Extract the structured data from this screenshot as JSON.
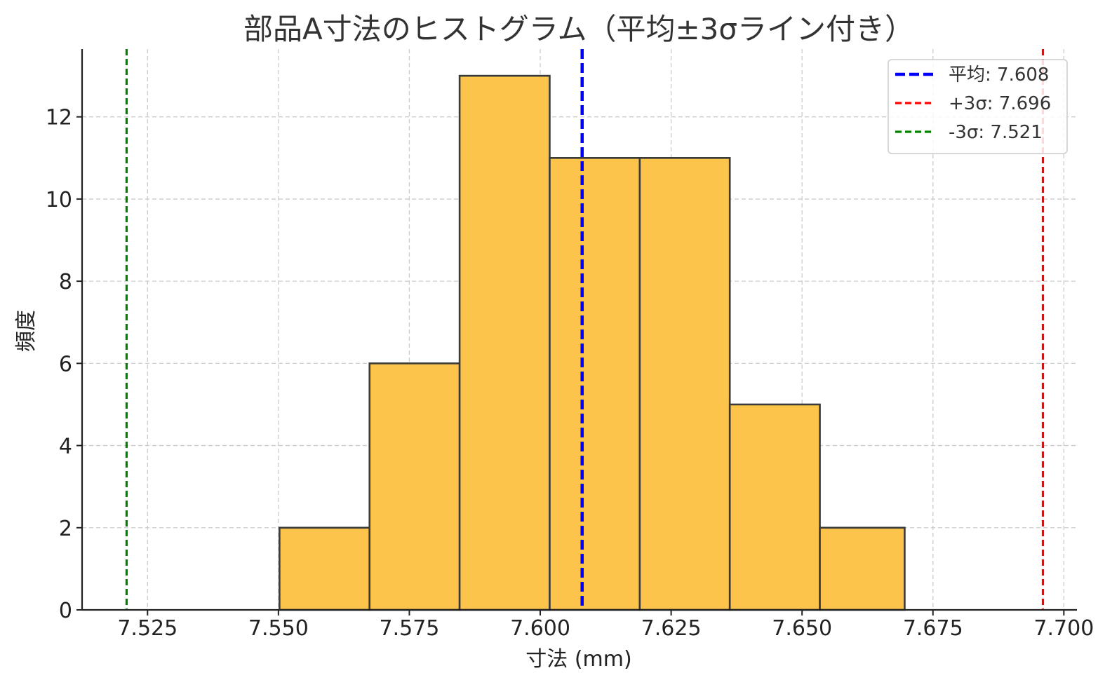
{
  "chart_data": {
    "type": "bar",
    "subtype": "histogram",
    "title": "部品A寸法のヒストグラム（平均±3σライン付き）",
    "xlabel": "寸法 (mm)",
    "ylabel": "頻度",
    "xlim": [
      7.5125,
      7.7025
    ],
    "ylim": [
      0,
      13.65
    ],
    "grid": true,
    "bar_color": "#fdc44b",
    "bar_edge_color": "#3a3a3a",
    "x_ticks": [
      7.525,
      7.55,
      7.575,
      7.6,
      7.625,
      7.65,
      7.675,
      7.7
    ],
    "x_tick_labels": [
      "7.525",
      "7.550",
      "7.575",
      "7.600",
      "7.625",
      "7.650",
      "7.675",
      "7.700"
    ],
    "y_ticks": [
      0,
      2,
      4,
      6,
      8,
      10,
      12
    ],
    "y_tick_labels": [
      "0",
      "2",
      "4",
      "6",
      "8",
      "10",
      "12"
    ],
    "bins": [
      {
        "start": 7.5502,
        "end": 7.5674,
        "count": 2
      },
      {
        "start": 7.5674,
        "end": 7.5846,
        "count": 6
      },
      {
        "start": 7.5846,
        "end": 7.6018,
        "count": 13
      },
      {
        "start": 7.6018,
        "end": 7.619,
        "count": 11
      },
      {
        "start": 7.619,
        "end": 7.6362,
        "count": 11
      },
      {
        "start": 7.6362,
        "end": 7.6534,
        "count": 5
      },
      {
        "start": 7.6534,
        "end": 7.6696,
        "count": 2
      }
    ],
    "reference_lines": [
      {
        "label": "平均: 7.608",
        "value": 7.608,
        "color": "#0000ff"
      },
      {
        "label": "+3σ: 7.696",
        "value": 7.696,
        "color": "#ff0000"
      },
      {
        "label": "-3σ: 7.521",
        "value": 7.521,
        "color": "#008000"
      }
    ],
    "legend_position": "top-right"
  }
}
